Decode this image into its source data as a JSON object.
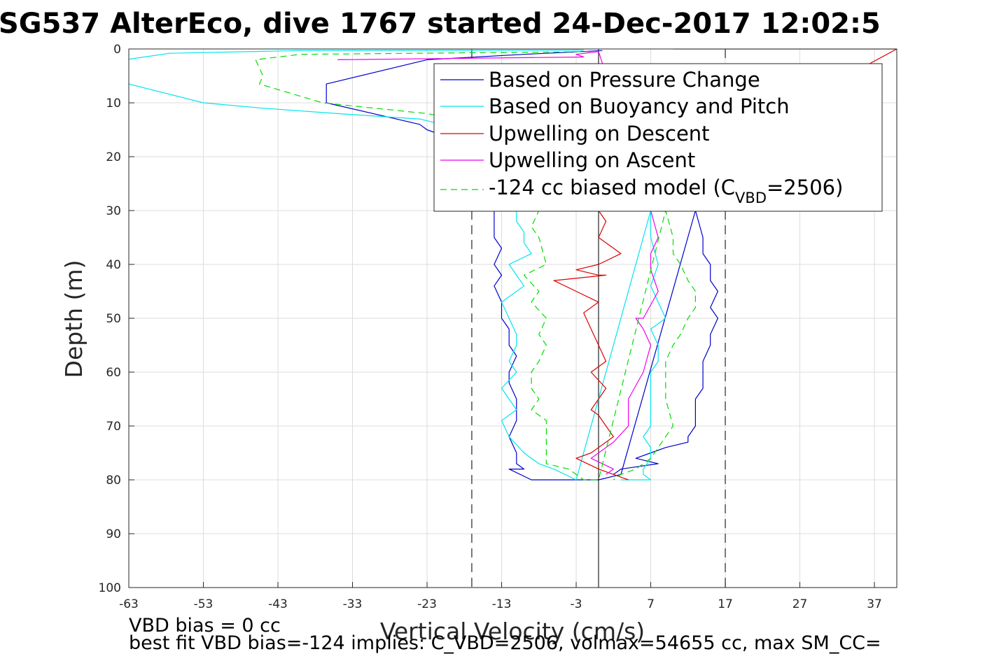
{
  "chart_data": {
    "type": "line",
    "title": "SG537 AlterEco, dive 1767 started 24-Dec-2017 12:02:5",
    "xlabel": "Vertical Velocity (cm/s)",
    "ylabel": "Depth (m)",
    "xlim": [
      -63,
      40
    ],
    "ylim": [
      0,
      100
    ],
    "y_reversed": true,
    "grid": true,
    "x_ticks": [
      "-63",
      "-53",
      "-43",
      "-33",
      "-23",
      "-13",
      "-3",
      "7",
      "17",
      "27",
      "37"
    ],
    "x_tick_values": [
      -63,
      -53,
      -43,
      -33,
      -23,
      -13,
      -3,
      7,
      17,
      27,
      37
    ],
    "y_ticks": [
      "0",
      "10",
      "20",
      "30",
      "40",
      "50",
      "60",
      "70",
      "80",
      "90",
      "100"
    ],
    "y_tick_values": [
      0,
      10,
      20,
      30,
      40,
      50,
      60,
      70,
      80,
      90,
      100
    ],
    "vertical_lines": [
      {
        "x": -17,
        "style": "dashed",
        "color": "#333333"
      },
      {
        "x": 0,
        "style": "solid",
        "color": "#333333"
      },
      {
        "x": 17,
        "style": "dashed",
        "color": "#333333"
      }
    ],
    "legend_position": "top-right",
    "legend": [
      {
        "label": "Based on Pressure Change",
        "color": "#0000cc",
        "dash": "solid"
      },
      {
        "label": "Based on Buoyancy and Pitch",
        "color": "#00e5ee",
        "dash": "solid"
      },
      {
        "label": "Upwelling on Descent",
        "color": "#dd0000",
        "dash": "solid"
      },
      {
        "label": "Upwelling on Ascent",
        "color": "#ee00ee",
        "dash": "solid"
      },
      {
        "label_main": "-124 cc biased model (C",
        "label_sub": "VBD",
        "label_tail": "=2506)",
        "color": "#00dd00",
        "dash": "dashed"
      }
    ],
    "series": [
      {
        "name": "Based on Pressure Change",
        "color": "#0000cc",
        "dash": "solid",
        "x": [
          0.5,
          -10,
          -23,
          -36.5,
          -36.5,
          -24,
          -23,
          -21,
          -20,
          -14,
          -14,
          -13,
          -14,
          -13,
          -14,
          -13,
          -13,
          -12,
          -12,
          -11,
          -12,
          -12,
          -11,
          -11,
          -11,
          -12,
          -11,
          -11,
          -10,
          -12,
          -9,
          -2,
          0,
          3,
          13,
          14,
          14,
          15,
          15,
          16,
          15,
          16,
          15,
          15,
          14,
          14,
          14,
          13,
          13,
          13,
          12,
          12,
          9,
          7,
          5,
          8,
          3,
          2
        ],
        "y": [
          0.3,
          1,
          2,
          6.5,
          10,
          14,
          15,
          16,
          18,
          30,
          35,
          37,
          40,
          42,
          44,
          47,
          50,
          52,
          55,
          57,
          60,
          62,
          65,
          67,
          69,
          72,
          75,
          77,
          78,
          78,
          80,
          80,
          80,
          79,
          30,
          35,
          38,
          40,
          43,
          45,
          48,
          50,
          53,
          55,
          58,
          60,
          63,
          65,
          68,
          70,
          72,
          73,
          74,
          75,
          76,
          77,
          78,
          79
        ]
      },
      {
        "name": "Based on Buoyancy and Pitch",
        "color": "#00e5ee",
        "dash": "solid",
        "x": [
          -2,
          -40,
          -57.5,
          -63.5,
          -64,
          -63,
          -53,
          -45,
          -35,
          -24,
          -21,
          -11,
          -11,
          -10,
          -10,
          -9,
          -12,
          -11,
          -10,
          -13,
          -12,
          -11,
          -11,
          -12,
          -11,
          -13,
          -12,
          -11,
          -13,
          -12,
          -10,
          -8,
          -6,
          -3,
          7,
          7,
          8,
          7,
          9,
          7,
          8,
          8,
          7,
          7,
          7,
          6,
          7,
          7,
          6,
          6,
          7,
          5,
          3
        ],
        "y": [
          0.2,
          0.3,
          0.8,
          2,
          5,
          6.5,
          10,
          11,
          12,
          13,
          14,
          30,
          32,
          34,
          36,
          38,
          40,
          42,
          44,
          47,
          50,
          53,
          55,
          58,
          60,
          63,
          65,
          67,
          69,
          72,
          75,
          77,
          78,
          80,
          30,
          35,
          40,
          44,
          50,
          52,
          55,
          58,
          60,
          65,
          70,
          72,
          74,
          76,
          78,
          79,
          80,
          80,
          80
        ]
      },
      {
        "name": "Upwelling on Descent",
        "color": "#dd0000",
        "dash": "solid",
        "x": [
          10,
          40,
          0,
          1,
          0,
          2,
          3,
          0,
          -3,
          0,
          1,
          -6,
          -3,
          0,
          -2,
          -1,
          0,
          1,
          -1,
          1,
          0,
          -1,
          0,
          1,
          2,
          0,
          -1,
          -3,
          0,
          2,
          4
        ],
        "y": [
          0,
          0,
          30,
          32,
          35,
          37,
          38,
          40,
          41,
          42,
          42,
          43,
          45,
          47,
          49,
          52,
          55,
          58,
          60,
          63,
          65,
          67,
          68,
          70,
          72,
          74,
          75,
          76,
          78,
          79,
          80
        ]
      },
      {
        "name": "Upwelling on Ascent",
        "color": "#ee00ee",
        "dash": "solid",
        "x": [
          -35,
          -2,
          -3,
          0,
          7,
          8,
          7,
          7,
          8,
          6,
          5,
          6,
          7,
          6,
          4,
          4,
          4,
          2,
          -1,
          2,
          1
        ],
        "y": [
          2,
          1.5,
          1,
          0.5,
          30,
          35,
          38,
          41,
          45,
          50,
          50,
          52,
          55,
          60,
          65,
          68,
          70,
          73,
          76,
          78,
          79
        ]
      },
      {
        "name": "-124 cc biased model",
        "color": "#00dd00",
        "dash": "dashed",
        "x": [
          -1,
          -40,
          -46,
          -45,
          -45.5,
          -37,
          -23,
          -15,
          -8,
          -9,
          -8,
          -7,
          -10,
          -8,
          -9,
          -7,
          -8,
          -7,
          -8,
          -9,
          -9,
          -8,
          -9,
          -7,
          -7,
          -7,
          -7,
          -4,
          -2,
          0,
          9,
          10,
          10,
          11,
          12,
          13,
          13,
          12,
          11,
          10,
          9,
          9,
          9,
          10,
          9,
          8,
          7,
          5,
          3,
          2
        ],
        "y": [
          0.5,
          1,
          2,
          5,
          6.5,
          10,
          12,
          14,
          30,
          33,
          35,
          40,
          42,
          45,
          47,
          50,
          53,
          55,
          58,
          60,
          63,
          65,
          67,
          69,
          72,
          75,
          77,
          78,
          80,
          80,
          30,
          35,
          38,
          40,
          43,
          45,
          48,
          50,
          53,
          55,
          58,
          60,
          65,
          70,
          72,
          74,
          76,
          78,
          79,
          80
        ]
      }
    ]
  },
  "legend_labels": {
    "l1": "Based on Pressure Change",
    "l2": "Based on Buoyancy and Pitch",
    "l3": "Upwelling on Descent",
    "l4": "Upwelling on Ascent",
    "l5_main": "-124 cc biased model (C",
    "l5_sub": "VBD",
    "l5_tail": "=2506)"
  },
  "footer": {
    "line1": "VBD bias = 0 cc",
    "line2": "best fit VBD bias=-124 implies: C_VBD=2506, volmax=54655 cc, max SM_CC="
  }
}
